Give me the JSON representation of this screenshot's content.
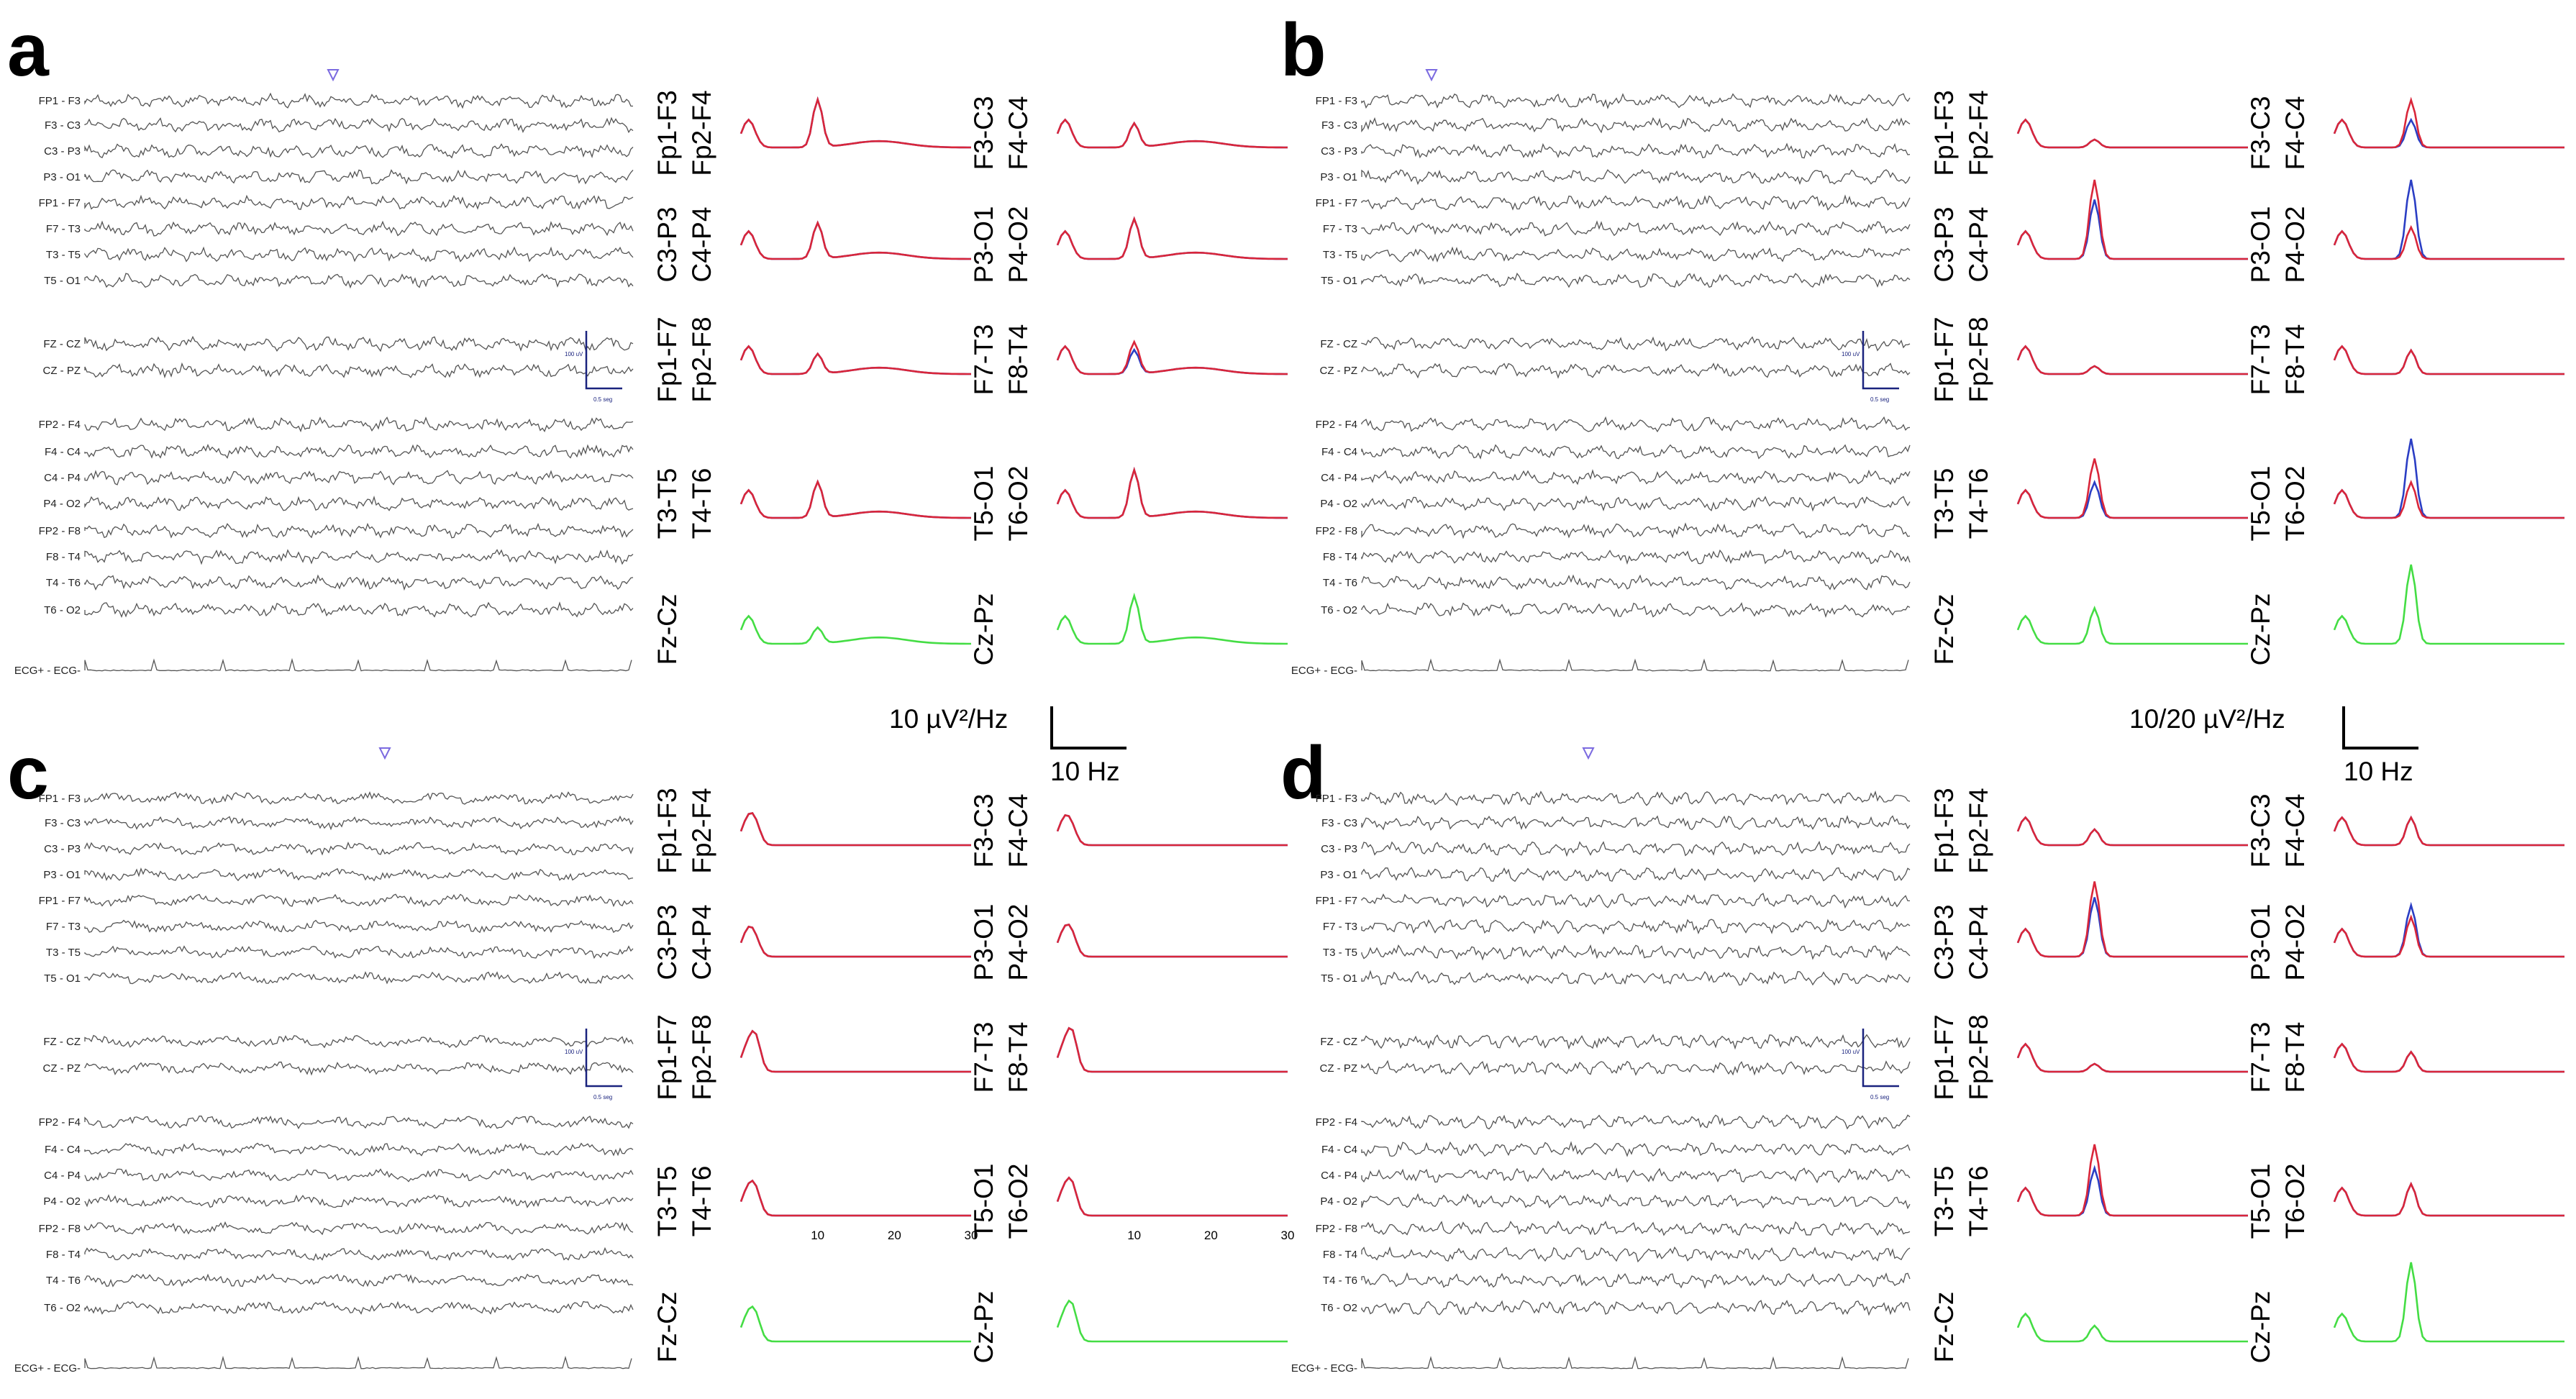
{
  "panel_labels": [
    "a",
    "b",
    "c",
    "d"
  ],
  "eeg_channels": {
    "groups": [
      [
        "FP1 - F3",
        "F3 - C3",
        "C3 - P3",
        "P3 - O1",
        "FP1 - F7",
        "F7 - T3",
        "T3 - T5",
        "T5 - O1"
      ],
      [
        "FZ - CZ",
        "CZ - PZ"
      ],
      [
        "FP2 - F4",
        "F4 - C4",
        "C4 - P4",
        "P4 - O2",
        "FP2 - F8",
        "F8 - T4",
        "T4 - T6",
        "T6 - O2"
      ]
    ],
    "ecg": "ECG+ - ECG-"
  },
  "calibration": {
    "amplitude": "100 uV",
    "time": "0.5 seg"
  },
  "spectrum_pairs": [
    [
      "Fp1-F3",
      "Fp2-F4"
    ],
    [
      "F3-C3",
      "F4-C4"
    ],
    [
      "C3-P3",
      "C4-P4"
    ],
    [
      "P3-O1",
      "P4-O2"
    ],
    [
      "Fp1-F7",
      "Fp2-F8"
    ],
    [
      "F7-T3",
      "F8-T4"
    ],
    [
      "T3-T5",
      "T4-T6"
    ],
    [
      "T5-O1",
      "T6-O2"
    ],
    [
      "Fz-Cz"
    ],
    [
      "Cz-Pz"
    ]
  ],
  "scale_bars": {
    "left": {
      "y_label": "10 µV²/Hz",
      "x_label": "10 Hz"
    },
    "right": {
      "y_label": "10/20 µV²/Hz",
      "x_label": "10 Hz"
    }
  },
  "x_ticks": [
    "10",
    "20",
    "30"
  ],
  "colors": {
    "left": "#d9263a",
    "right": "#2b3ec4",
    "midline": "#44dd44",
    "eeg": "#555555",
    "calibration": "#1a237e"
  },
  "chart_data": {
    "type": "line",
    "x_unit": "Hz",
    "xlim": [
      0,
      30
    ],
    "panels": [
      {
        "panel": "a",
        "alpha_peak_hz": 10,
        "red": {
          "Fp1-F3": 0.6,
          "F3-C3": 0.3,
          "C3-P3": 0.45,
          "P3-O1": 0.5,
          "Fp1-F7": 0.25,
          "F7-T3": 0.4,
          "T3-T5": 0.45,
          "T5-O1": 0.6,
          "Fz-Cz": 0.2,
          "Cz-Pz": 0.6
        },
        "blue": {
          "Fp2-F4": 0.6,
          "F4-C4": 0.3,
          "C4-P4": 0.45,
          "P4-O2": 0.5,
          "Fp2-F8": 0.25,
          "F8-T4": 0.3,
          "T4-T6": 0.45,
          "T6-O2": 0.6
        }
      },
      {
        "panel": "b",
        "alpha_peak_hz": 10,
        "red": {
          "Fp1-F3": 0.1,
          "F3-C3": 0.6,
          "C3-P3": 1.0,
          "P3-O1": 0.4,
          "Fp1-F7": 0.1,
          "F7-T3": 0.3,
          "T3-T5": 0.75,
          "T5-O1": 0.45,
          "Fz-Cz": 0.45,
          "Cz-Pz": 1.0
        },
        "blue": {
          "Fp2-F4": 0.1,
          "F4-C4": 0.35,
          "C4-P4": 0.75,
          "P4-O2": 1.0,
          "Fp2-F8": 0.1,
          "F8-T4": 0.3,
          "T4-T6": 0.45,
          "T6-O2": 1.0
        }
      },
      {
        "panel": "c",
        "alpha_peak_hz": 2,
        "red": {
          "Fp1-F3": 0.15,
          "F3-C3": 0.1,
          "C3-P3": 0.1,
          "P3-O1": 0.15,
          "Fp1-F7": 0.3,
          "F7-T3": 0.35,
          "T3-T5": 0.2,
          "T5-O1": 0.25,
          "Fz-Cz": 0.2,
          "Cz-Pz": 0.3
        },
        "blue": {
          "Fp2-F4": 0.15,
          "F4-C4": 0.1,
          "C4-P4": 0.1,
          "P4-O2": 0.15,
          "Fp2-F8": 0.3,
          "F8-T4": 0.35,
          "T4-T6": 0.2,
          "T6-O2": 0.25
        }
      },
      {
        "panel": "d",
        "alpha_peak_hz": 10,
        "red": {
          "Fp1-F3": 0.2,
          "F3-C3": 0.35,
          "C3-P3": 0.95,
          "P3-O1": 0.5,
          "Fp1-F7": 0.1,
          "F7-T3": 0.25,
          "T3-T5": 0.9,
          "T5-O1": 0.4,
          "Fz-Cz": 0.2,
          "Cz-Pz": 1.0
        },
        "blue": {
          "Fp2-F4": 0.2,
          "F4-C4": 0.35,
          "C4-P4": 0.75,
          "P4-O2": 0.65,
          "Fp2-F8": 0.1,
          "F8-T4": 0.25,
          "T4-T6": 0.6,
          "T6-O2": 0.4
        }
      }
    ]
  }
}
